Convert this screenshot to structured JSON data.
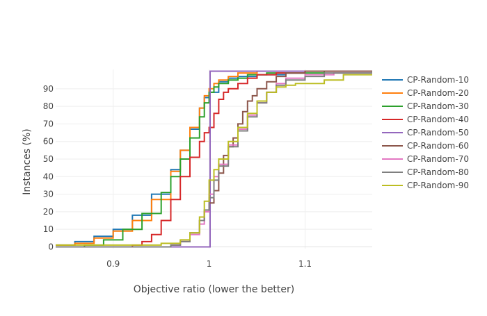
{
  "chart_data": {
    "type": "line",
    "title": "",
    "xlabel": "Objective ratio (lower the better)",
    "ylabel": "Instances (%)",
    "xlim": [
      0.84,
      1.17
    ],
    "ylim": [
      -1,
      101
    ],
    "x_ticks": [
      0.9,
      1,
      1.1
    ],
    "x_tick_labels": [
      "0.9",
      "1",
      "1.1"
    ],
    "y_ticks": [
      0,
      10,
      20,
      30,
      40,
      50,
      60,
      70,
      80,
      90
    ],
    "y_tick_labels": [
      "0",
      "10",
      "20",
      "30",
      "40",
      "50",
      "60",
      "70",
      "80",
      "90"
    ],
    "grid": true,
    "legend_position": "right",
    "series": [
      {
        "name": "CP-Random-10",
        "color": "#1f77b4",
        "x": [
          0.84,
          0.86,
          0.88,
          0.9,
          0.92,
          0.94,
          0.96,
          0.97,
          0.98,
          0.99,
          0.995,
          1.0,
          1.01,
          1.02,
          1.03,
          1.05,
          1.08,
          1.1,
          1.17
        ],
        "y": [
          1,
          3,
          6,
          10,
          18,
          30,
          44,
          55,
          67,
          79,
          85,
          88,
          94,
          96,
          97,
          98,
          99,
          100,
          100
        ]
      },
      {
        "name": "CP-Random-20",
        "color": "#ff7f0e",
        "x": [
          0.84,
          0.86,
          0.88,
          0.9,
          0.92,
          0.94,
          0.96,
          0.97,
          0.98,
          0.99,
          0.995,
          1.0,
          1.005,
          1.01,
          1.02,
          1.03,
          1.05,
          1.17
        ],
        "y": [
          1,
          2,
          5,
          9,
          15,
          27,
          43,
          55,
          68,
          79,
          86,
          90,
          93,
          95,
          97,
          99,
          100,
          100
        ]
      },
      {
        "name": "CP-Random-30",
        "color": "#2ca02c",
        "x": [
          0.84,
          0.87,
          0.89,
          0.91,
          0.93,
          0.95,
          0.96,
          0.97,
          0.98,
          0.99,
          0.995,
          1.0,
          1.005,
          1.01,
          1.02,
          1.03,
          1.04,
          1.06,
          1.09,
          1.12,
          1.17
        ],
        "y": [
          0,
          1,
          4,
          10,
          19,
          31,
          40,
          50,
          62,
          74,
          82,
          88,
          91,
          93,
          95,
          96,
          98,
          99,
          99,
          100,
          100
        ]
      },
      {
        "name": "CP-Random-40",
        "color": "#d62728",
        "x": [
          0.84,
          0.9,
          0.92,
          0.93,
          0.94,
          0.95,
          0.96,
          0.97,
          0.98,
          0.99,
          0.995,
          1.0,
          1.005,
          1.01,
          1.015,
          1.02,
          1.03,
          1.04,
          1.05,
          1.07,
          1.1,
          1.17
        ],
        "y": [
          0,
          0,
          1,
          3,
          7,
          15,
          27,
          40,
          51,
          60,
          65,
          68,
          76,
          84,
          88,
          90,
          93,
          96,
          98,
          99,
          100,
          100
        ]
      },
      {
        "name": "CP-Random-50",
        "color": "#9467bd",
        "x": [
          0.84,
          0.999,
          1.0,
          1.001,
          1.17
        ],
        "y": [
          0,
          0,
          0,
          100,
          100
        ]
      },
      {
        "name": "CP-Random-60",
        "color": "#8c564b",
        "x": [
          0.84,
          0.96,
          0.97,
          0.98,
          0.99,
          0.995,
          1.0,
          1.005,
          1.01,
          1.015,
          1.02,
          1.025,
          1.03,
          1.035,
          1.04,
          1.045,
          1.05,
          1.06,
          1.07,
          1.08,
          1.1,
          1.17
        ],
        "y": [
          0,
          1,
          3,
          8,
          15,
          20,
          25,
          32,
          42,
          52,
          57,
          62,
          70,
          77,
          83,
          86,
          90,
          94,
          97,
          99,
          100,
          100
        ]
      },
      {
        "name": "CP-Random-70",
        "color": "#e377c2",
        "x": [
          0.84,
          0.96,
          0.97,
          0.98,
          0.99,
          0.995,
          1.0,
          1.005,
          1.01,
          1.02,
          1.03,
          1.04,
          1.05,
          1.06,
          1.07,
          1.08,
          1.1,
          1.13,
          1.17
        ],
        "y": [
          0,
          1,
          3,
          7,
          13,
          20,
          30,
          40,
          47,
          58,
          67,
          75,
          82,
          88,
          93,
          96,
          98,
          99,
          100
        ]
      },
      {
        "name": "CP-Random-80",
        "color": "#7f7f7f",
        "x": [
          0.84,
          0.96,
          0.97,
          0.98,
          0.99,
          0.995,
          1.0,
          1.005,
          1.01,
          1.02,
          1.03,
          1.04,
          1.05,
          1.06,
          1.07,
          1.08,
          1.1,
          1.12,
          1.17
        ],
        "y": [
          0,
          1,
          3,
          8,
          15,
          21,
          28,
          38,
          46,
          57,
          66,
          74,
          82,
          88,
          92,
          95,
          97,
          99,
          100
        ]
      },
      {
        "name": "CP-Random-90",
        "color": "#bcbd22",
        "x": [
          0.84,
          0.93,
          0.95,
          0.97,
          0.98,
          0.99,
          0.995,
          1.0,
          1.005,
          1.01,
          1.02,
          1.03,
          1.04,
          1.05,
          1.06,
          1.07,
          1.08,
          1.09,
          1.1,
          1.12,
          1.14,
          1.17
        ],
        "y": [
          1,
          1,
          2,
          4,
          8,
          17,
          26,
          38,
          44,
          50,
          60,
          68,
          76,
          83,
          88,
          91,
          92,
          93,
          93,
          95,
          98,
          98
        ]
      }
    ]
  }
}
